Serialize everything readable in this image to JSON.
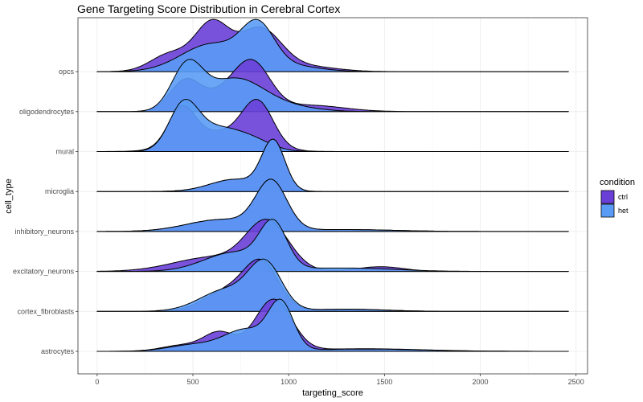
{
  "chart_data": {
    "type": "area",
    "subtype": "ridgeline",
    "title": "Gene Targeting Score Distribution in Cerebral Cortex",
    "xlabel": "targeting_score",
    "ylabel": "cell_type",
    "xlim": [
      -100,
      2560
    ],
    "x_ticks": [
      0,
      500,
      1000,
      1500,
      2000,
      2500
    ],
    "x_tick_labels": [
      "0",
      "500",
      "1000",
      "1500",
      "2000",
      "2500"
    ],
    "x_range": [
      0,
      2460
    ],
    "grid": true,
    "legend": {
      "title": "condition",
      "position": "right"
    },
    "categories": [
      "astrocytes",
      "cortex_fibroblasts",
      "excitatory_neurons",
      "inhibitory_neurons",
      "microglia",
      "mural",
      "oligodendrocytes",
      "opcs"
    ],
    "colors": {
      "ctrl": "#6a3fd8",
      "het": "#5a9bf5"
    },
    "series": [
      {
        "name": "ctrl",
        "ridges": [
          {
            "category": "astrocytes",
            "peaks": [
              [
                920,
                95,
                1.0
              ],
              [
                640,
                80,
                0.35
              ],
              [
                450,
                110,
                0.12
              ],
              [
                1400,
                300,
                0.05
              ]
            ]
          },
          {
            "category": "cortex_fibroblasts",
            "peaks": [
              [
                860,
                90,
                1.0
              ],
              [
                680,
                120,
                0.45
              ],
              [
                1300,
                200,
                0.05
              ]
            ]
          },
          {
            "category": "excitatory_neurons",
            "peaks": [
              [
                890,
                110,
                1.0
              ],
              [
                600,
                200,
                0.3
              ],
              [
                1480,
                120,
                0.1
              ]
            ]
          },
          {
            "category": "inhibitory_neurons",
            "peaks": [
              [
                910,
                80,
                1.0
              ],
              [
                650,
                180,
                0.25
              ],
              [
                1300,
                250,
                0.04
              ]
            ]
          },
          {
            "category": "microglia",
            "peaks": [
              [
                920,
                60,
                1.0
              ],
              [
                720,
                130,
                0.25
              ]
            ]
          },
          {
            "category": "mural",
            "peaks": [
              [
                440,
                70,
                0.85
              ],
              [
                840,
                80,
                1.0
              ],
              [
                640,
                170,
                0.45
              ]
            ]
          },
          {
            "category": "oligodendrocytes",
            "peaks": [
              [
                460,
                80,
                0.7
              ],
              [
                820,
                90,
                0.85
              ],
              [
                700,
                120,
                0.5
              ],
              [
                1100,
                180,
                0.15
              ]
            ]
          },
          {
            "category": "opcs",
            "peaks": [
              [
                600,
                90,
                0.95
              ],
              [
                380,
                100,
                0.35
              ],
              [
                850,
                110,
                0.85
              ],
              [
                1100,
                150,
                0.1
              ]
            ]
          }
        ]
      },
      {
        "name": "het",
        "ridges": [
          {
            "category": "astrocytes",
            "peaks": [
              [
                960,
                65,
                1.0
              ],
              [
                780,
                110,
                0.45
              ],
              [
                520,
                140,
                0.15
              ],
              [
                1400,
                300,
                0.05
              ]
            ]
          },
          {
            "category": "cortex_fibroblasts",
            "peaks": [
              [
                880,
                85,
                1.0
              ],
              [
                680,
                140,
                0.5
              ],
              [
                1300,
                200,
                0.05
              ]
            ]
          },
          {
            "category": "excitatory_neurons",
            "peaks": [
              [
                920,
                70,
                1.0
              ],
              [
                720,
                160,
                0.45
              ],
              [
                1300,
                250,
                0.08
              ]
            ]
          },
          {
            "category": "inhibitory_neurons",
            "peaks": [
              [
                910,
                80,
                1.0
              ],
              [
                650,
                180,
                0.25
              ],
              [
                1300,
                250,
                0.04
              ]
            ]
          },
          {
            "category": "microglia",
            "peaks": [
              [
                920,
                60,
                1.0
              ],
              [
                720,
                130,
                0.25
              ]
            ]
          },
          {
            "category": "mural",
            "peaks": [
              [
                450,
                75,
                1.0
              ],
              [
                620,
                130,
                0.55
              ],
              [
                820,
                100,
                0.2
              ]
            ]
          },
          {
            "category": "oligodendrocytes",
            "peaks": [
              [
                470,
                80,
                1.0
              ],
              [
                720,
                150,
                0.75
              ],
              [
                1000,
                150,
                0.1
              ]
            ]
          },
          {
            "category": "opcs",
            "peaks": [
              [
                840,
                85,
                1.0
              ],
              [
                600,
                160,
                0.7
              ],
              [
                1000,
                150,
                0.15
              ]
            ]
          }
        ]
      }
    ]
  }
}
